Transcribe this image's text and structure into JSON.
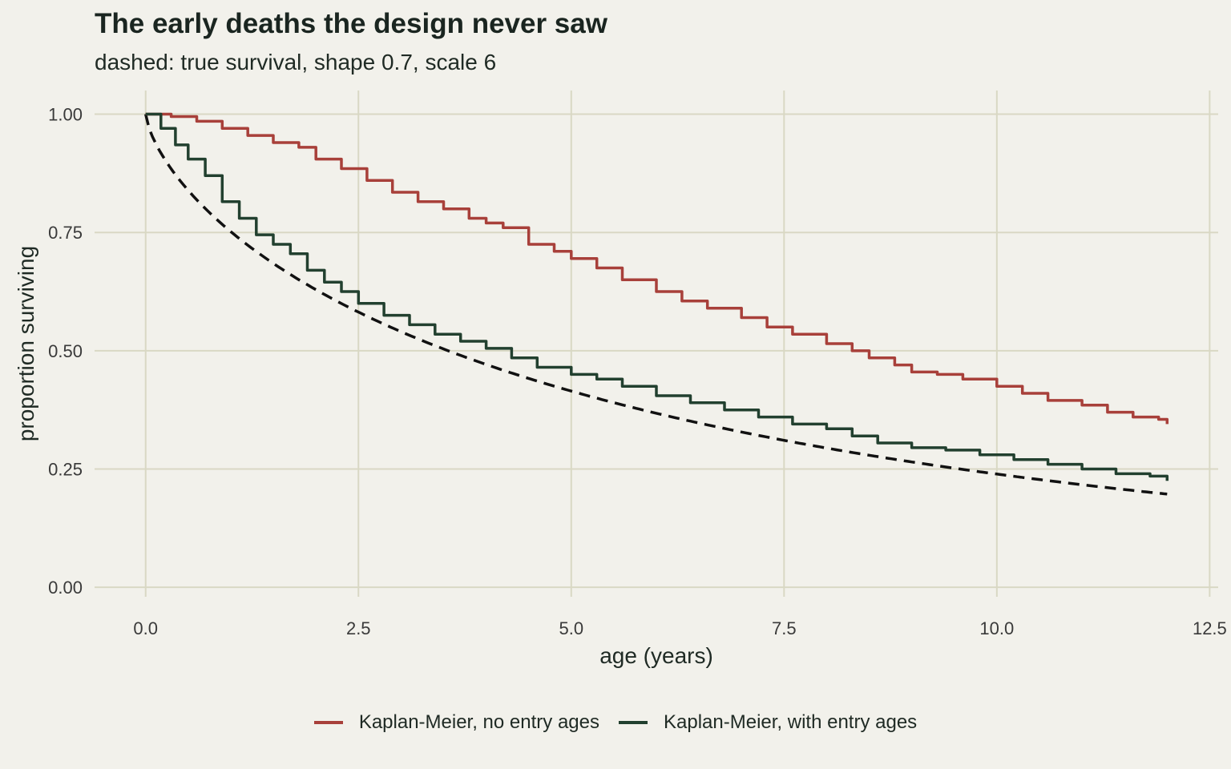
{
  "chart_data": {
    "type": "line",
    "title": "The early deaths the design never saw",
    "subtitle": "dashed: true survival, shape 0.7, scale 6",
    "xlabel": "age (years)",
    "ylabel": "proportion surviving",
    "xlim": [
      -0.6,
      12.6
    ],
    "ylim": [
      -0.02,
      1.05
    ],
    "x_ticks": [
      0,
      2.5,
      5,
      7.5,
      10,
      12.5
    ],
    "x_tick_labels": [
      "0.0",
      "2.5",
      "5.0",
      "7.5",
      "10.0",
      "12.5"
    ],
    "y_ticks": [
      0,
      0.25,
      0.5,
      0.75,
      1
    ],
    "y_tick_labels": [
      "0.00",
      "0.25",
      "0.50",
      "0.75",
      "1.00"
    ],
    "grid": true,
    "legend_position": "bottom",
    "true_survival": {
      "style": "dashed",
      "color": "#111111",
      "shape": 0.7,
      "scale": 6,
      "x_max": 12
    },
    "series": [
      {
        "name": "Kaplan-Meier, no entry ages",
        "color": "#a8403a",
        "x": [
          0,
          0.3,
          0.6,
          0.9,
          1.2,
          1.5,
          1.8,
          2.0,
          2.3,
          2.6,
          2.9,
          3.2,
          3.5,
          3.8,
          4.0,
          4.2,
          4.5,
          4.8,
          5.0,
          5.3,
          5.6,
          6.0,
          6.3,
          6.6,
          7.0,
          7.3,
          7.6,
          8.0,
          8.3,
          8.5,
          8.8,
          9.0,
          9.3,
          9.6,
          10.0,
          10.3,
          10.6,
          11.0,
          11.3,
          11.6,
          11.9,
          12.0
        ],
        "y": [
          1.0,
          0.995,
          0.985,
          0.97,
          0.955,
          0.94,
          0.93,
          0.905,
          0.885,
          0.86,
          0.835,
          0.815,
          0.8,
          0.78,
          0.77,
          0.76,
          0.725,
          0.71,
          0.695,
          0.675,
          0.65,
          0.625,
          0.605,
          0.59,
          0.57,
          0.55,
          0.535,
          0.515,
          0.5,
          0.485,
          0.47,
          0.455,
          0.45,
          0.44,
          0.425,
          0.41,
          0.395,
          0.385,
          0.37,
          0.36,
          0.355,
          0.345
        ]
      },
      {
        "name": "Kaplan-Meier, with entry ages",
        "color": "#22402f",
        "x": [
          0,
          0.18,
          0.35,
          0.5,
          0.7,
          0.9,
          1.1,
          1.3,
          1.5,
          1.7,
          1.9,
          2.1,
          2.3,
          2.5,
          2.8,
          3.1,
          3.4,
          3.7,
          4.0,
          4.3,
          4.6,
          5.0,
          5.3,
          5.6,
          6.0,
          6.4,
          6.8,
          7.2,
          7.6,
          8.0,
          8.3,
          8.6,
          9.0,
          9.4,
          9.8,
          10.2,
          10.6,
          11.0,
          11.4,
          11.8,
          12.0
        ],
        "y": [
          1.0,
          0.97,
          0.935,
          0.905,
          0.87,
          0.815,
          0.78,
          0.745,
          0.725,
          0.705,
          0.67,
          0.645,
          0.625,
          0.6,
          0.575,
          0.555,
          0.535,
          0.52,
          0.505,
          0.485,
          0.465,
          0.45,
          0.44,
          0.425,
          0.405,
          0.39,
          0.375,
          0.36,
          0.345,
          0.335,
          0.32,
          0.305,
          0.295,
          0.29,
          0.28,
          0.27,
          0.26,
          0.25,
          0.24,
          0.235,
          0.225
        ]
      }
    ]
  }
}
